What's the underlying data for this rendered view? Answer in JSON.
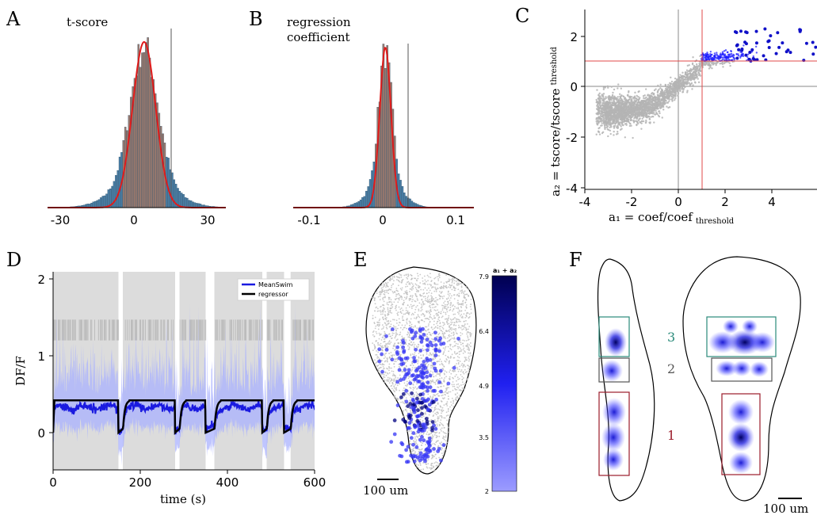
{
  "panels": {
    "A": {
      "letter": "A",
      "title": "t-score",
      "ticks": [
        "-30",
        "0",
        "30"
      ]
    },
    "B": {
      "letter": "B",
      "title_line1": "regression",
      "title_line2": "coefficient",
      "ticks": [
        "-0.1",
        "0",
        "0.1"
      ]
    },
    "C": {
      "letter": "C",
      "xticks": [
        "-4",
        "-2",
        "0",
        "2",
        "4"
      ],
      "yticks": [
        "2",
        "0",
        "-2",
        "-4"
      ],
      "xlabel": "a₁ = coef/coef",
      "xlabel_sub": "threshold",
      "ylabel": "a₂ = tscore/tscore",
      "ylabel_sub": "threshold"
    },
    "D": {
      "letter": "D",
      "xticks": [
        "0",
        "200",
        "400",
        "600"
      ],
      "yticks": [
        "2",
        "1",
        "0"
      ],
      "xlabel": "time (s)",
      "ylabel": "DF/F",
      "legend": [
        "MeanSwim",
        "regressor"
      ]
    },
    "E": {
      "letter": "E",
      "scalebar": "100 um",
      "cbar_title": "a₁ + a₂",
      "cbar_ticks": [
        "7.9",
        "6.4",
        "4.9",
        "3.5",
        "2"
      ]
    },
    "F": {
      "letter": "F",
      "scalebar": "100 um",
      "regions": [
        "3",
        "2",
        "1"
      ]
    }
  },
  "colors": {
    "hist_blue": "#4a7fa6",
    "hist_brown": "#9b7a6e",
    "fit_red": "#e01b1b",
    "scatter_grey": "#b4b4b4",
    "blue": "#1a1aff",
    "teal": "#2a8a7a",
    "dark_red": "#9b1b2a"
  },
  "chart_data": [
    {
      "type": "bar",
      "panel": "A",
      "xlim": [
        -35,
        37
      ],
      "threshold": 15,
      "fit_center": 4,
      "fit_sd": 5.5,
      "wide_sd": 11
    },
    {
      "type": "bar",
      "panel": "B",
      "xlim": [
        -0.15,
        0.15
      ],
      "threshold": 0.03,
      "fit_center": 0.003,
      "fit_sd": 0.011,
      "wide_sd": 0.026
    },
    {
      "type": "scatter",
      "panel": "C",
      "xlim": [
        -4,
        6
      ],
      "ylim": [
        -4,
        3
      ],
      "threshold_x": 1,
      "threshold_y": 1
    },
    {
      "type": "line",
      "panel": "D",
      "xlim": [
        0,
        600
      ],
      "ylim": [
        -0.3,
        2.1
      ],
      "series": [
        {
          "name": "MeanSwim"
        },
        {
          "name": "regressor"
        }
      ],
      "gaps": [
        150,
        160,
        280,
        290,
        350,
        370,
        480,
        490,
        530,
        545
      ],
      "regressor_high": 0.42,
      "regressor_low": 0
    }
  ]
}
